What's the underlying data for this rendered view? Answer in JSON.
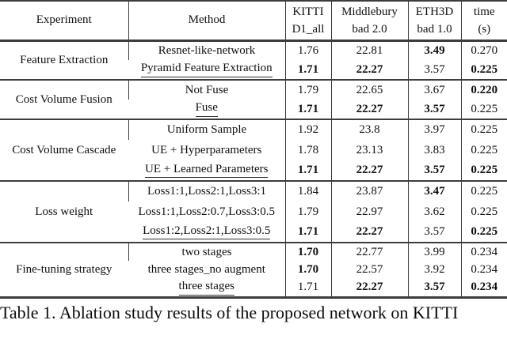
{
  "colors": {
    "background": "#ffffff",
    "text": "#101010",
    "rule": "#3c3c3c"
  },
  "table": {
    "header": {
      "experiment": "Experiment",
      "method": "Method",
      "kitti": [
        "KITTI",
        "D1_all"
      ],
      "middlebury": [
        "Middlebury",
        "bad 2.0"
      ],
      "eth3d": [
        "ETH3D",
        "bad 1.0"
      ],
      "time": [
        "time",
        "(s)"
      ]
    },
    "groups": [
      {
        "experiment": "Feature Extraction",
        "rows": [
          {
            "method": {
              "v": "Resnet-like-network",
              "underline": false
            },
            "cells": [
              {
                "v": "1.76",
                "bold": false
              },
              {
                "v": "22.81",
                "bold": false
              },
              {
                "v": "3.49",
                "bold": true
              },
              {
                "v": "0.270",
                "bold": false
              }
            ]
          },
          {
            "method": {
              "v": "Pyramid Feature Extraction",
              "underline": true
            },
            "cells": [
              {
                "v": "1.71",
                "bold": true
              },
              {
                "v": "22.27",
                "bold": true
              },
              {
                "v": "3.57",
                "bold": false
              },
              {
                "v": "0.225",
                "bold": true
              }
            ]
          }
        ]
      },
      {
        "experiment": "Cost Volume Fusion",
        "rows": [
          {
            "method": {
              "v": "Not Fuse",
              "underline": false
            },
            "cells": [
              {
                "v": "1.79",
                "bold": false
              },
              {
                "v": "22.65",
                "bold": false
              },
              {
                "v": "3.67",
                "bold": false
              },
              {
                "v": "0.220",
                "bold": true
              }
            ]
          },
          {
            "method": {
              "v": "Fuse",
              "underline": true
            },
            "cells": [
              {
                "v": "1.71",
                "bold": true
              },
              {
                "v": "22.27",
                "bold": true
              },
              {
                "v": "3.57",
                "bold": true
              },
              {
                "v": "0.225",
                "bold": false
              }
            ]
          }
        ]
      },
      {
        "experiment": "Cost Volume Cascade",
        "rows": [
          {
            "method": {
              "v": "Uniform Sample",
              "underline": false
            },
            "cells": [
              {
                "v": "1.92",
                "bold": false
              },
              {
                "v": "23.8",
                "bold": false
              },
              {
                "v": "3.97",
                "bold": false
              },
              {
                "v": "0.225",
                "bold": false
              }
            ]
          },
          {
            "method": {
              "v": "UE + Hyperparameters",
              "underline": false
            },
            "cells": [
              {
                "v": "1.78",
                "bold": false
              },
              {
                "v": "23.13",
                "bold": false
              },
              {
                "v": "3.83",
                "bold": false
              },
              {
                "v": "0.225",
                "bold": false
              }
            ]
          },
          {
            "method": {
              "v": "UE + Learned Parameters",
              "underline": true
            },
            "cells": [
              {
                "v": "1.71",
                "bold": true
              },
              {
                "v": "22.27",
                "bold": true
              },
              {
                "v": "3.57",
                "bold": true
              },
              {
                "v": "0.225",
                "bold": true
              }
            ]
          }
        ]
      },
      {
        "experiment": "Loss weight",
        "rows": [
          {
            "method": {
              "v": "Loss1:1,Loss2:1,Loss3:1",
              "underline": false
            },
            "cells": [
              {
                "v": "1.84",
                "bold": false
              },
              {
                "v": "23.87",
                "bold": false
              },
              {
                "v": "3.47",
                "bold": true
              },
              {
                "v": "0.225",
                "bold": false
              }
            ]
          },
          {
            "method": {
              "v": "Loss1:1,Loss2:0.7,Loss3:0.5",
              "underline": false
            },
            "cells": [
              {
                "v": "1.79",
                "bold": false
              },
              {
                "v": "22.97",
                "bold": false
              },
              {
                "v": "3.62",
                "bold": false
              },
              {
                "v": "0.225",
                "bold": false
              }
            ]
          },
          {
            "method": {
              "v": "Loss1:2,Loss2:1,Loss3:0.5",
              "underline": true
            },
            "cells": [
              {
                "v": "1.71",
                "bold": true
              },
              {
                "v": "22.27",
                "bold": true
              },
              {
                "v": "3.57",
                "bold": false
              },
              {
                "v": "0.225",
                "bold": true
              }
            ]
          }
        ]
      },
      {
        "experiment": "Fine-tuning strategy",
        "rows": [
          {
            "method": {
              "v": "two stages",
              "underline": false
            },
            "cells": [
              {
                "v": "1.70",
                "bold": true
              },
              {
                "v": "22.77",
                "bold": false
              },
              {
                "v": "3.99",
                "bold": false
              },
              {
                "v": "0.234",
                "bold": false
              }
            ]
          },
          {
            "method": {
              "v": "three stages_no augment",
              "underline": false
            },
            "cells": [
              {
                "v": "1.70",
                "bold": true
              },
              {
                "v": "22.57",
                "bold": false
              },
              {
                "v": "3.92",
                "bold": false
              },
              {
                "v": "0.234",
                "bold": false
              }
            ]
          },
          {
            "method": {
              "v": "three stages",
              "underline": true
            },
            "cells": [
              {
                "v": "1.71",
                "bold": false
              },
              {
                "v": "22.27",
                "bold": true
              },
              {
                "v": "3.57",
                "bold": true
              },
              {
                "v": "0.234",
                "bold": true
              }
            ]
          }
        ]
      }
    ]
  },
  "caption": {
    "text": "Table 1. Ablation study results of the proposed network on KITTI"
  }
}
